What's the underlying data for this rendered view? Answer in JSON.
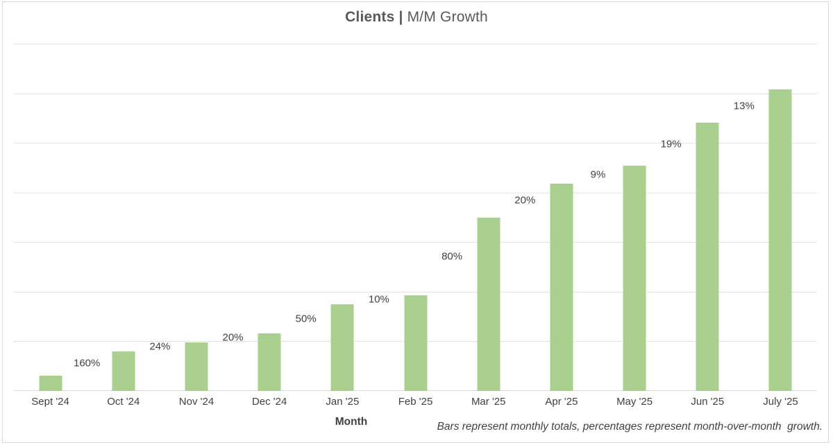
{
  "chart": {
    "title_bold": "Clients |",
    "title_regular": "M/M Growth",
    "xlabel": "Month",
    "footnote": "Bars represent monthly totals, percentages represent month-over-month  growth."
  },
  "chart_data": {
    "type": "bar",
    "title": "Clients | M/M Growth",
    "xlabel": "Month",
    "ylabel": "",
    "categories": [
      "Sept '24",
      "Oct '24",
      "Nov '24",
      "Dec '24",
      "Jan '25",
      "Feb '25",
      "Mar '25",
      "Apr '25",
      "May '25",
      "Jun '25",
      "July '25"
    ],
    "values": [
      5,
      13,
      16,
      19,
      28.5,
      31.5,
      57,
      68,
      74,
      88,
      99
    ],
    "values_estimated": true,
    "growth_labels": [
      "",
      "160%",
      "24%",
      "20%",
      "50%",
      "10%",
      "80%",
      "20%",
      "9%",
      "19%",
      "13%"
    ],
    "ylim": [
      0,
      114
    ],
    "value_axis_labels_visible": false,
    "gridlines": "horizontal",
    "gridline_count": 8,
    "legend": "none",
    "bar_color": "#A9D08E",
    "footnote": "Bars represent monthly totals, percentages represent month-over-month  growth."
  },
  "colors": {
    "bar": "#A9D08E",
    "gridline": "#E2E2E2",
    "baseline": "#D9D9D9",
    "frame": "#D9D9D9",
    "title_text": "#595959",
    "text": "#404040"
  }
}
